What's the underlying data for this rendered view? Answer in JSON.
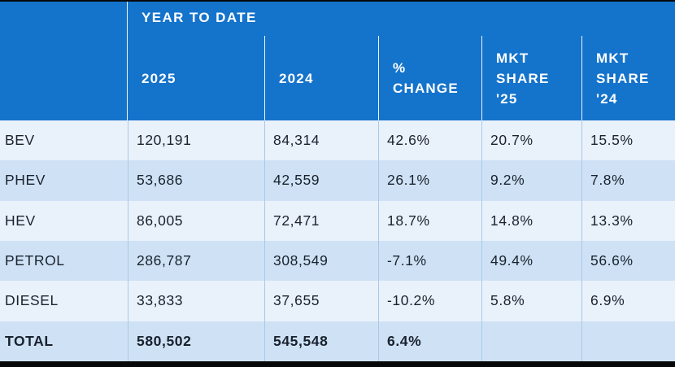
{
  "header": {
    "group_label": "YEAR TO DATE",
    "cols": [
      "2025",
      "2024",
      "%\nCHANGE",
      "MKT\nSHARE\n'25",
      "MKT\nSHARE\n'24"
    ]
  },
  "chart_data": {
    "type": "table",
    "title": "YEAR TO DATE",
    "columns": [
      "",
      "2025",
      "2024",
      "% CHANGE",
      "MKT SHARE '25",
      "MKT SHARE '24"
    ],
    "rows": [
      [
        "BEV",
        "120,191",
        "84,314",
        "42.6%",
        "20.7%",
        "15.5%"
      ],
      [
        "PHEV",
        "53,686",
        "42,559",
        "26.1%",
        "9.2%",
        "7.8%"
      ],
      [
        "HEV",
        "86,005",
        "72,471",
        "18.7%",
        "14.8%",
        "13.3%"
      ],
      [
        "PETROL",
        "286,787",
        "308,549",
        "-7.1%",
        "49.4%",
        "56.6%"
      ],
      [
        "DIESEL",
        "33,833",
        "37,655",
        "-10.2%",
        "5.8%",
        "6.9%"
      ],
      [
        "TOTAL",
        "580,502",
        "545,548",
        "6.4%",
        "",
        ""
      ]
    ]
  },
  "colors": {
    "header_blue": "#1473CB",
    "row_light": "#E9F1FB",
    "row_shaded": "#CFE2F5",
    "body_divider": "#A9C9E9",
    "header_divider": "#FFFFFF",
    "text_dark": "#19222E",
    "frame_black": "#060708"
  }
}
